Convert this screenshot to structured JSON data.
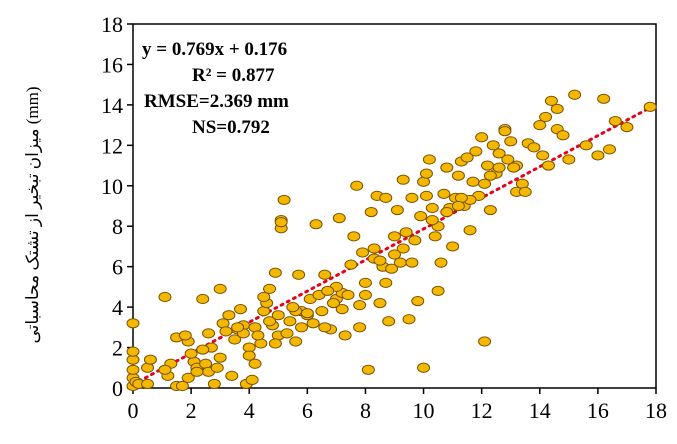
{
  "chart_data": {
    "type": "scatter",
    "title": "",
    "xlabel": "",
    "ylabel": "میزان تبخیر از تشتک محاسباتی (mm)",
    "xlim": [
      0,
      18
    ],
    "ylim": [
      0,
      18
    ],
    "x_ticks": [
      0,
      2,
      4,
      6,
      8,
      10,
      12,
      14,
      16,
      18
    ],
    "y_ticks": [
      0,
      2,
      4,
      6,
      8,
      10,
      12,
      14,
      16,
      18
    ],
    "grid": false,
    "annotations": {
      "equation": "y = 0.769x + 0.176",
      "r2": "R² = 0.877",
      "rmse": "RMSE=2.369 mm",
      "ns": "NS=0.792"
    },
    "trendline": {
      "slope": 0.769,
      "intercept": 0.176,
      "style": "dotted",
      "color": "#e8001c"
    },
    "marker": {
      "fill": "#f5b800",
      "stroke": "#7a5200"
    },
    "series": [
      {
        "x": [
          0,
          0,
          0,
          0,
          0,
          0,
          0.1,
          0.2,
          0.5,
          0.5,
          0.6,
          1.1,
          1.2,
          1.3,
          1.5,
          1.5,
          1.7,
          1.9,
          1.9,
          2.1,
          2.2,
          2.4,
          2.5,
          2.6,
          2.7,
          2.8,
          2.9,
          3.0,
          3.1,
          3.3,
          3.5,
          3.6,
          3.7,
          3.8,
          3.9,
          4.0,
          4.1,
          4.2,
          4.4,
          4.5,
          4.6,
          4.7,
          4.8,
          4.9,
          5.0,
          5.1,
          5.2,
          5.3,
          5.4,
          5.6,
          5.7,
          5.8,
          6.0,
          6.1,
          6.2,
          6.3,
          6.5,
          6.6,
          6.8,
          7.0,
          7.1,
          7.2,
          7.3,
          7.5,
          7.6,
          7.7,
          7.8,
          8.0,
          8.1,
          8.2,
          8.3,
          8.4,
          8.5,
          8.6,
          8.7,
          8.8,
          9.0,
          9.1,
          9.2,
          9.3,
          9.4,
          9.5,
          9.6,
          9.7,
          9.8,
          10.0,
          10.1,
          10.2,
          10.3,
          10.4,
          10.5,
          10.6,
          10.7,
          10.8,
          10.9,
          11.0,
          11.1,
          11.2,
          11.3,
          11.4,
          11.5,
          11.6,
          11.7,
          11.8,
          11.9,
          12.0,
          12.1,
          12.2,
          12.3,
          12.4,
          12.5,
          12.6,
          12.8,
          12.9,
          13.0,
          13.2,
          13.4,
          13.6,
          13.8,
          14.0,
          14.1,
          14.2,
          14.4,
          14.6,
          14.8,
          15.2,
          15.6,
          16.0,
          16.2,
          16.4,
          17.0,
          17.8,
          12.1,
          10.0,
          9.6,
          5.1,
          5.1,
          2.2,
          3.4,
          1.1,
          3.8,
          6.6,
          7.8,
          10.1,
          13.2,
          4.0,
          4.5,
          5.6,
          7.2,
          8.7,
          9.3,
          10.8,
          4.2,
          2.6,
          3.0,
          6.0,
          7.4,
          8.0,
          11.6,
          12.8,
          14.6,
          16.6,
          1.8,
          2.4,
          5.8,
          9.0,
          3.2,
          4.7,
          5.5,
          7.0,
          8.3,
          9.9,
          11.3,
          13.5,
          15.0,
          2.0,
          3.6,
          4.3,
          6.4,
          7.9,
          10.5,
          12.3,
          14.3,
          5.0,
          6.9,
          8.9,
          11.2,
          13.1,
          4.9,
          6.7,
          8.5,
          10.3,
          12.6
        ],
        "y": [
          0.1,
          0.5,
          0.9,
          1.4,
          1.8,
          3.2,
          0.3,
          0.2,
          1.0,
          0.2,
          1.4,
          4.5,
          0.6,
          1.2,
          0.1,
          2.5,
          0.1,
          0.5,
          2.3,
          1.3,
          1.0,
          4.4,
          1.2,
          0.8,
          2.0,
          0.2,
          1.0,
          4.9,
          3.2,
          3.6,
          2.4,
          2.9,
          3.9,
          3.1,
          0.2,
          2.0,
          0.4,
          3.0,
          2.2,
          3.8,
          4.2,
          4.9,
          3.1,
          5.7,
          2.6,
          8.3,
          9.3,
          2.7,
          3.3,
          2.3,
          5.6,
          3.8,
          3.6,
          4.4,
          3.2,
          8.1,
          3.8,
          5.6,
          2.9,
          4.4,
          8.4,
          4.7,
          2.6,
          6.1,
          7.5,
          10.0,
          3.0,
          4.6,
          0.9,
          8.7,
          6.9,
          9.5,
          4.2,
          6.0,
          9.4,
          3.3,
          7.5,
          8.8,
          6.2,
          10.3,
          7.7,
          3.4,
          9.4,
          7.3,
          4.3,
          10.2,
          9.5,
          11.3,
          8.9,
          7.5,
          4.8,
          6.2,
          9.6,
          10.9,
          8.9,
          7.0,
          9.4,
          10.5,
          11.2,
          9.0,
          11.4,
          7.8,
          10.2,
          11.7,
          9.5,
          12.4,
          10.1,
          11.0,
          8.8,
          12.0,
          10.6,
          11.6,
          12.8,
          11.3,
          12.2,
          11.0,
          10.1,
          12.1,
          11.9,
          13.0,
          11.5,
          13.4,
          14.2,
          12.8,
          12.5,
          14.5,
          12.0,
          11.5,
          14.3,
          11.8,
          12.9,
          13.9,
          2.3,
          1.0,
          6.2,
          7.9,
          8.2,
          0.8,
          0.6,
          0.9,
          2.7,
          3.0,
          4.1,
          10.6,
          9.7,
          1.6,
          4.5,
          3.8,
          3.9,
          5.2,
          6.9,
          8.7,
          1.2,
          2.7,
          1.5,
          3.7,
          4.6,
          5.2,
          9.3,
          12.7,
          13.8,
          13.2,
          2.6,
          1.9,
          3.0,
          6.6,
          2.8,
          3.3,
          4.0,
          5.0,
          6.4,
          8.5,
          9.4,
          9.7,
          11.3,
          1.7,
          3.0,
          2.6,
          4.6,
          6.7,
          8.0,
          10.5,
          11.0,
          3.6,
          4.2,
          5.9,
          9.0,
          10.9,
          2.2,
          4.8,
          6.3,
          8.3,
          10.9
        ]
      }
    ]
  }
}
